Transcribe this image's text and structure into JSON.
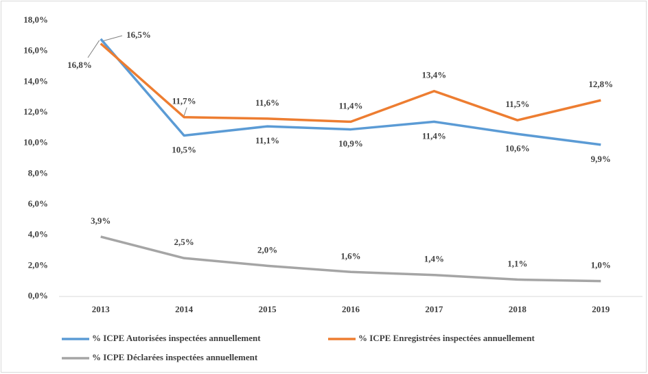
{
  "chart_data": {
    "type": "line",
    "categories": [
      "2013",
      "2014",
      "2015",
      "2016",
      "2017",
      "2018",
      "2019"
    ],
    "series": [
      {
        "name": "% ICPE Autorisées inspectées annuellement",
        "color": "#5b9bd5",
        "values": [
          16.8,
          10.5,
          11.1,
          10.9,
          11.4,
          10.6,
          9.9
        ],
        "value_labels": [
          "16,8%",
          "10,5%",
          "11,1%",
          "10,9%",
          "11,4%",
          "10,6%",
          "9,9%"
        ]
      },
      {
        "name": "% ICPE Enregistrées inspectées annuellement",
        "color": "#ed7d31",
        "values": [
          16.5,
          11.7,
          11.6,
          11.4,
          13.4,
          11.5,
          12.8
        ],
        "value_labels": [
          "16,5%",
          "11,7%",
          "11,6%",
          "11,4%",
          "13,4%",
          "11,5%",
          "12,8%"
        ]
      },
      {
        "name": "% ICPE Déclarées inspectées annuellement",
        "color": "#a5a5a5",
        "values": [
          3.9,
          2.5,
          2.0,
          1.6,
          1.4,
          1.1,
          1.0
        ],
        "value_labels": [
          "3,9%",
          "2,5%",
          "2,0%",
          "1,6%",
          "1,4%",
          "1,1%",
          "1,0%"
        ]
      }
    ],
    "ylim": [
      0,
      18
    ],
    "yticks": [
      {
        "value": 0,
        "label": "0,0%"
      },
      {
        "value": 2,
        "label": "2,0%"
      },
      {
        "value": 4,
        "label": "4,0%"
      },
      {
        "value": 6,
        "label": "6,0%"
      },
      {
        "value": 8,
        "label": "8,0%"
      },
      {
        "value": 10,
        "label": "10,0%"
      },
      {
        "value": 12,
        "label": "12,0%"
      },
      {
        "value": 14,
        "label": "14,0%"
      },
      {
        "value": 16,
        "label": "16,0%"
      },
      {
        "value": 18,
        "label": "18,0%"
      }
    ],
    "grid": false
  }
}
